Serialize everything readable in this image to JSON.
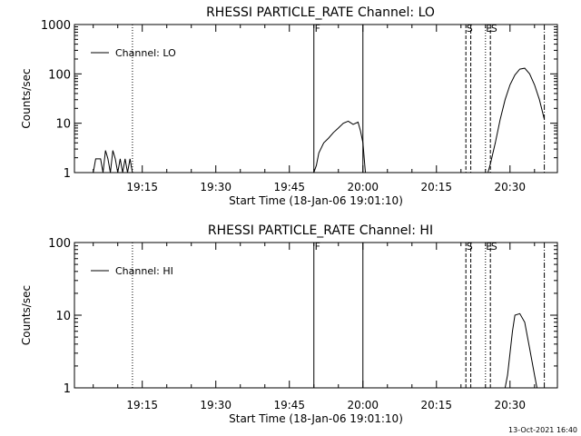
{
  "footer": {
    "timestamp": "13-Oct-2021 16:40"
  },
  "chart_data": [
    {
      "type": "line",
      "title": "RHESSI PARTICLE_RATE Channel: LO",
      "xlabel": "Start Time (18-Jan-06 19:01:10)",
      "ylabel": "Counts/sec",
      "yscale": "log",
      "ylim": [
        1,
        1000
      ],
      "xlim_minutes_after_start": [
        0,
        98.5
      ],
      "x_tick_labels": [
        "19:15",
        "19:30",
        "19:45",
        "20:00",
        "20:15",
        "20:30"
      ],
      "y_tick_labels": [
        "1",
        "10",
        "100",
        "1000"
      ],
      "legend": {
        "label": "Channel: LO",
        "position": "top-left"
      },
      "markers": [
        {
          "label": "F",
          "time": "19:50",
          "style": "solid"
        },
        {
          "label": "",
          "time": "20:00",
          "style": "solid"
        },
        {
          "label": "",
          "time": "19:13",
          "style": "dotted"
        },
        {
          "label": "S",
          "time": "20:21",
          "style": "dashed"
        },
        {
          "label": "",
          "time": "20:22",
          "style": "dashed"
        },
        {
          "label": "E",
          "time": "20:25",
          "style": "dotted"
        },
        {
          "label": "S",
          "time": "20:26",
          "style": "dashed"
        },
        {
          "label": "",
          "time": "20:37",
          "style": "dashdot"
        }
      ],
      "series": [
        {
          "segments": [
            [
              [
                "19:05",
                1
              ],
              [
                "19:05.5",
                1.9
              ],
              [
                "19:06.5",
                1.9
              ],
              [
                "19:07",
                1
              ],
              [
                "19:07.5",
                2.8
              ],
              [
                "19:08",
                1.9
              ],
              [
                "19:08.5",
                1
              ],
              [
                "19:09",
                2.8
              ],
              [
                "19:09.5",
                1.9
              ],
              [
                "19:10",
                1
              ],
              [
                "19:10.5",
                1.9
              ],
              [
                "19:11",
                1
              ],
              [
                "19:11.5",
                1.9
              ],
              [
                "19:12",
                1
              ],
              [
                "19:12.5",
                1.9
              ],
              [
                "19:13",
                1
              ]
            ],
            [
              [
                "19:50",
                1
              ],
              [
                "19:50.5",
                1.4
              ],
              [
                "19:51",
                2.5
              ],
              [
                "19:52",
                4
              ],
              [
                "19:53",
                5
              ],
              [
                "19:54",
                6.5
              ],
              [
                "19:55",
                8
              ],
              [
                "19:56",
                10
              ],
              [
                "19:57",
                11
              ],
              [
                "19:58",
                9.5
              ],
              [
                "19:59",
                10.5
              ],
              [
                "19:59.5",
                7
              ],
              [
                "20:00",
                4
              ],
              [
                "20:00.5",
                1
              ]
            ],
            [
              [
                "20:25.5",
                1
              ],
              [
                "20:26",
                1.5
              ],
              [
                "20:27",
                4
              ],
              [
                "20:28",
                12
              ],
              [
                "20:29",
                30
              ],
              [
                "20:30",
                60
              ],
              [
                "20:31",
                95
              ],
              [
                "20:32",
                125
              ],
              [
                "20:33",
                130
              ],
              [
                "20:34",
                100
              ],
              [
                "20:35",
                60
              ],
              [
                "20:36",
                30
              ],
              [
                "20:37",
                12
              ]
            ]
          ]
        }
      ]
    },
    {
      "type": "line",
      "title": "RHESSI PARTICLE_RATE Channel: HI",
      "xlabel": "Start Time (18-Jan-06 19:01:10)",
      "ylabel": "Counts/sec",
      "yscale": "log",
      "ylim": [
        1,
        100
      ],
      "xlim_minutes_after_start": [
        0,
        98.5
      ],
      "x_tick_labels": [
        "19:15",
        "19:30",
        "19:45",
        "20:00",
        "20:15",
        "20:30"
      ],
      "y_tick_labels": [
        "1",
        "10",
        "100"
      ],
      "legend": {
        "label": "Channel: HI",
        "position": "top-left"
      },
      "markers": [
        {
          "label": "F",
          "time": "19:50",
          "style": "solid"
        },
        {
          "label": "",
          "time": "20:00",
          "style": "solid"
        },
        {
          "label": "",
          "time": "19:13",
          "style": "dotted"
        },
        {
          "label": "S",
          "time": "20:21",
          "style": "dashed"
        },
        {
          "label": "",
          "time": "20:22",
          "style": "dashed"
        },
        {
          "label": "E",
          "time": "20:25",
          "style": "dotted"
        },
        {
          "label": "S",
          "time": "20:26",
          "style": "dashed"
        },
        {
          "label": "",
          "time": "20:37",
          "style": "dashdot"
        }
      ],
      "series": [
        {
          "segments": [
            [
              [
                "20:29",
                1
              ],
              [
                "20:29.5",
                1.5
              ],
              [
                "20:30",
                3
              ],
              [
                "20:30.5",
                6
              ],
              [
                "20:31",
                10
              ],
              [
                "20:32",
                10.5
              ],
              [
                "20:33",
                8
              ],
              [
                "20:34",
                3.5
              ],
              [
                "20:35",
                1.5
              ],
              [
                "20:35.5",
                1
              ]
            ]
          ]
        }
      ]
    }
  ]
}
